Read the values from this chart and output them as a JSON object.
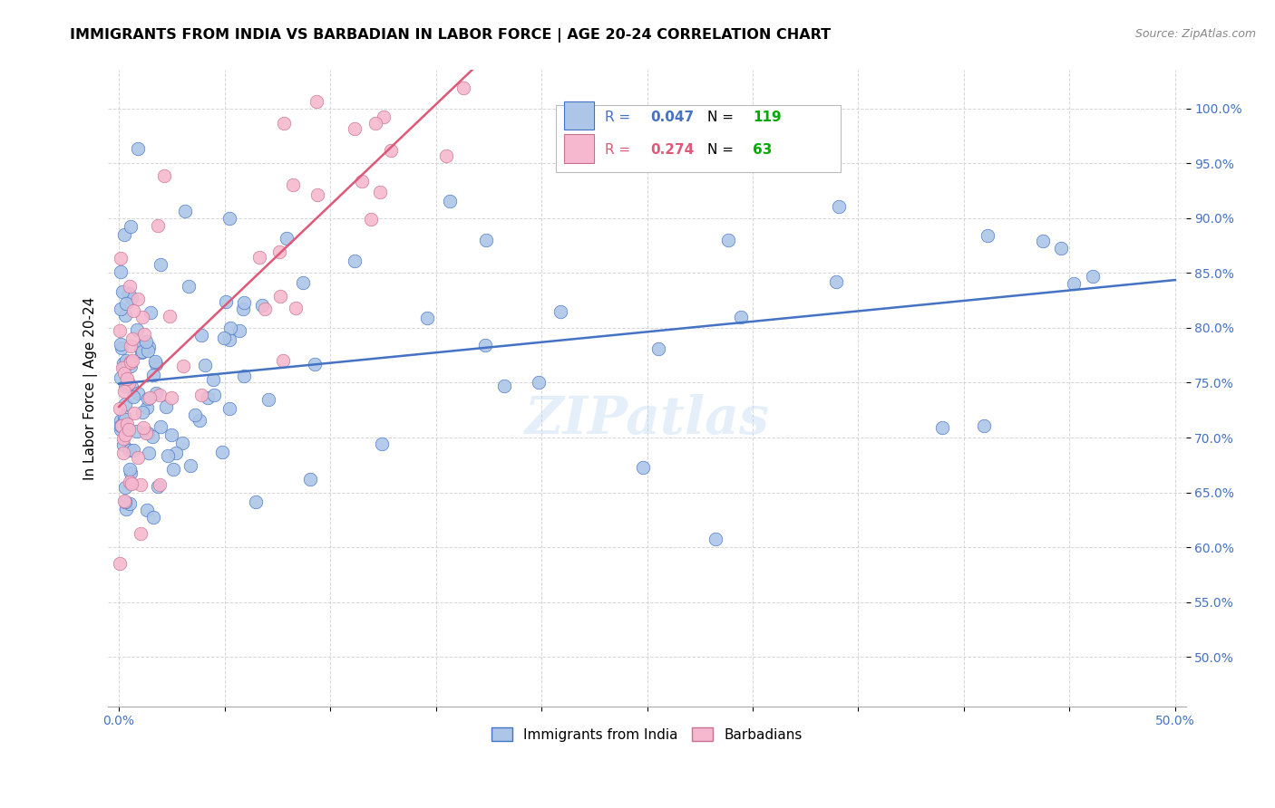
{
  "title": "IMMIGRANTS FROM INDIA VS BARBADIAN IN LABOR FORCE | AGE 20-24 CORRELATION CHART",
  "source": "Source: ZipAtlas.com",
  "ylabel": "In Labor Force | Age 20-24",
  "xlim": [
    -0.005,
    0.505
  ],
  "ylim": [
    0.455,
    1.035
  ],
  "yticks": [
    0.5,
    0.55,
    0.6,
    0.65,
    0.7,
    0.75,
    0.8,
    0.85,
    0.9,
    0.95,
    1.0
  ],
  "ytick_labels": [
    "50.0%",
    "55.0%",
    "60.0%",
    "65.0%",
    "70.0%",
    "75.0%",
    "80.0%",
    "85.0%",
    "90.0%",
    "95.0%",
    "100.0%"
  ],
  "xticks": [
    0.0,
    0.05,
    0.1,
    0.15,
    0.2,
    0.25,
    0.3,
    0.35,
    0.4,
    0.45,
    0.5
  ],
  "xtick_labels": [
    "0.0%",
    "",
    "",
    "",
    "",
    "",
    "",
    "",
    "",
    "",
    "50.0%"
  ],
  "legend_r_india": "0.047",
  "legend_n_india": "119",
  "legend_r_barbadian": "0.274",
  "legend_n_barbadian": "63",
  "color_india": "#adc6e8",
  "color_barbadian": "#f5b8ce",
  "line_color_india": "#4472c4",
  "line_color_barbadian": "#e05878",
  "color_n": "#00aa00",
  "watermark": "ZIPatlas",
  "india_seed": 42,
  "barb_seed": 7
}
